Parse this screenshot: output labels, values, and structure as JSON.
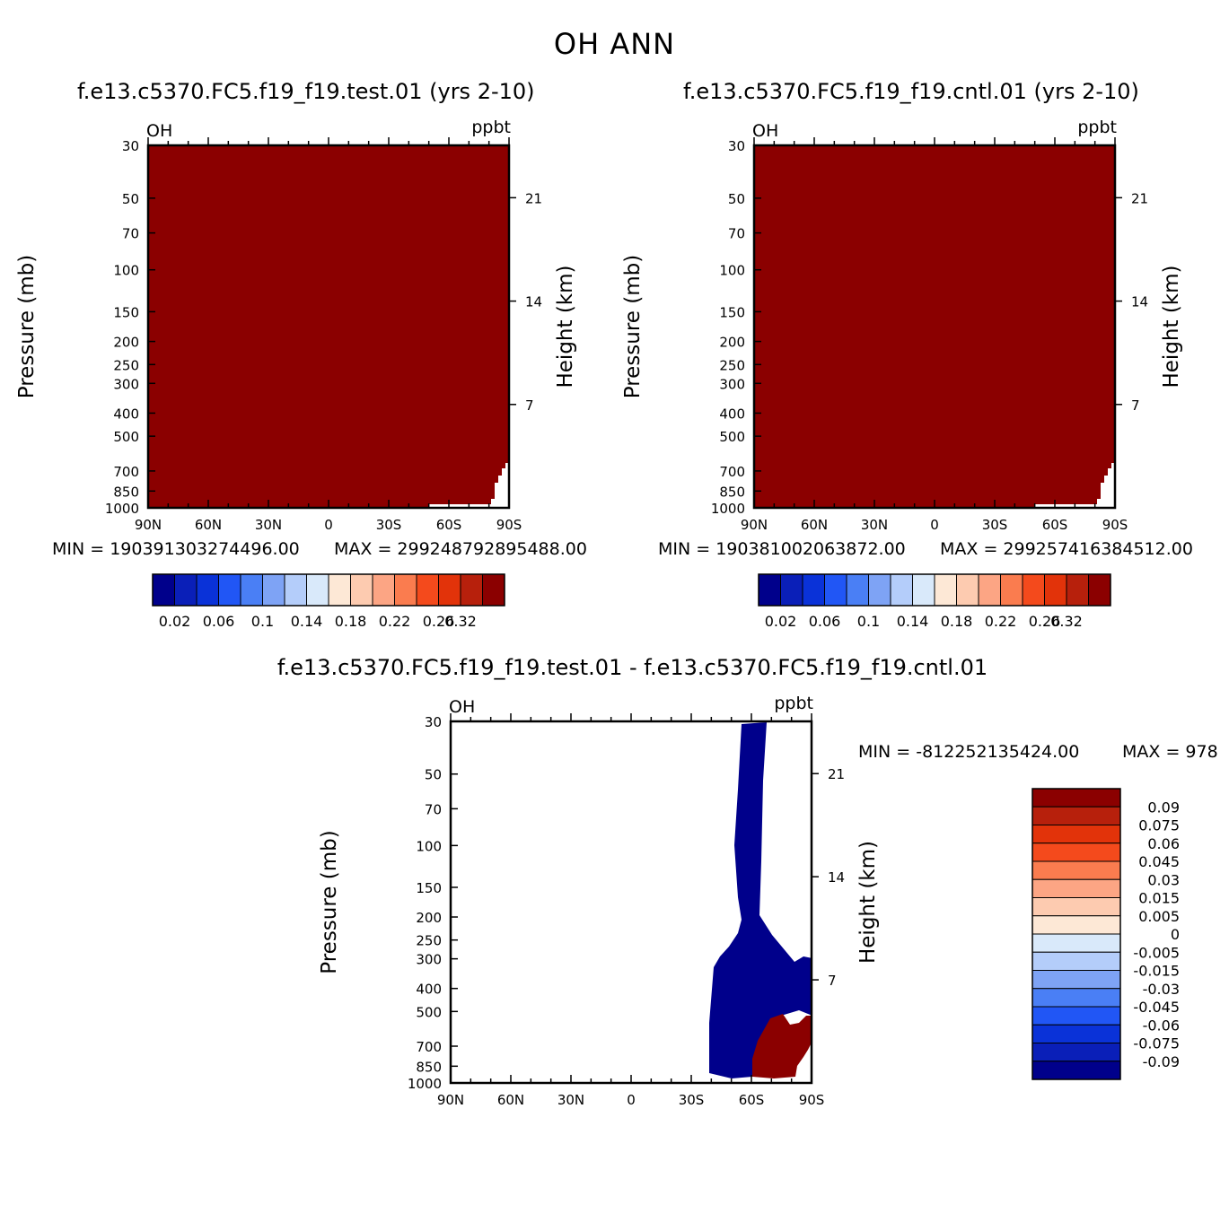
{
  "figure_title": "OH ANN",
  "colors": {
    "dark_red": "#8b0000",
    "navy": "#00008b",
    "white": "#ffffff"
  },
  "chart_data": [
    {
      "type": "heatmap",
      "title": "f.e13.c5370.FC5.f19_f19.test.01 (yrs 2-10)",
      "variable": "OH",
      "units": "ppbt",
      "ylabel": "Pressure (mb)",
      "ylabel_right": "Height (km)",
      "x_ticks": [
        "90N",
        "60N",
        "30N",
        "0",
        "30S",
        "60S",
        "90S"
      ],
      "y_ticks": [
        "30",
        "50",
        "70",
        "100",
        "150",
        "200",
        "250",
        "300",
        "400",
        "500",
        "700",
        "850",
        "1000"
      ],
      "y_right_ticks": [
        "21",
        "14",
        "7"
      ],
      "ylim": [
        1000,
        30
      ],
      "y_scale": "log",
      "min_label": "MIN = 190391303274496.00",
      "max_label": "MAX = 299248792895488.00",
      "colorbar": {
        "orientation": "horizontal",
        "tick_labels": [
          "0.02",
          "0.06",
          "0.1",
          "0.14",
          "0.18",
          "0.22",
          "0.26",
          "0.32"
        ],
        "colors": [
          "#00008b",
          "#0a1fb8",
          "#0a32d8",
          "#2156f5",
          "#4a7ff5",
          "#7ea3f5",
          "#b4cdfa",
          "#d9e9fa",
          "#fde8d6",
          "#fdcbb0",
          "#fca584",
          "#fa7c4f",
          "#f44a1c",
          "#e2330a",
          "#b7200c",
          "#8b0000"
        ]
      }
    },
    {
      "type": "heatmap",
      "title": "f.e13.c5370.FC5.f19_f19.cntl.01 (yrs 2-10)",
      "variable": "OH",
      "units": "ppbt",
      "ylabel": "Pressure (mb)",
      "ylabel_right": "Height (km)",
      "x_ticks": [
        "90N",
        "60N",
        "30N",
        "0",
        "30S",
        "60S",
        "90S"
      ],
      "y_ticks": [
        "30",
        "50",
        "70",
        "100",
        "150",
        "200",
        "250",
        "300",
        "400",
        "500",
        "700",
        "850",
        "1000"
      ],
      "y_right_ticks": [
        "21",
        "14",
        "7"
      ],
      "ylim": [
        1000,
        30
      ],
      "y_scale": "log",
      "min_label": "MIN = 190381002063872.00",
      "max_label": "MAX = 299257416384512.00",
      "colorbar": {
        "orientation": "horizontal",
        "tick_labels": [
          "0.02",
          "0.06",
          "0.1",
          "0.14",
          "0.18",
          "0.22",
          "0.26",
          "0.32"
        ],
        "colors": [
          "#00008b",
          "#0a1fb8",
          "#0a32d8",
          "#2156f5",
          "#4a7ff5",
          "#7ea3f5",
          "#b4cdfa",
          "#d9e9fa",
          "#fde8d6",
          "#fdcbb0",
          "#fca584",
          "#fa7c4f",
          "#f44a1c",
          "#e2330a",
          "#b7200c",
          "#8b0000"
        ]
      }
    },
    {
      "type": "heatmap",
      "title": "f.e13.c5370.FC5.f19_f19.test.01 - f.e13.c5370.FC5.f19_f19.cntl.01",
      "variable": "OH",
      "units": "ppbt",
      "ylabel": "Pressure (mb)",
      "ylabel_right": "Height (km)",
      "x_ticks": [
        "90N",
        "60N",
        "30N",
        "0",
        "30S",
        "60S",
        "90S"
      ],
      "y_ticks": [
        "30",
        "50",
        "70",
        "100",
        "150",
        "200",
        "250",
        "300",
        "400",
        "500",
        "700",
        "850",
        "1000"
      ],
      "y_right_ticks": [
        "21",
        "14",
        "7"
      ],
      "ylim": [
        1000,
        30
      ],
      "y_scale": "log",
      "min_label": "MIN = -812252135424.00",
      "max_label": "MAX = 978",
      "colorbar": {
        "orientation": "vertical",
        "tick_labels": [
          "0.09",
          "0.075",
          "0.06",
          "0.045",
          "0.03",
          "0.015",
          "0.005",
          "0",
          "-0.005",
          "-0.015",
          "-0.03",
          "-0.045",
          "-0.06",
          "-0.075",
          "-0.09"
        ],
        "colors": [
          "#8b0000",
          "#b7200c",
          "#e2330a",
          "#f44a1c",
          "#fa7c4f",
          "#fca584",
          "#fdcbb0",
          "#fde8d6",
          "#d9e9fa",
          "#b4cdfa",
          "#7ea3f5",
          "#4a7ff5",
          "#2156f5",
          "#0a32d8",
          "#0a1fb8",
          "#00008b"
        ]
      }
    }
  ]
}
